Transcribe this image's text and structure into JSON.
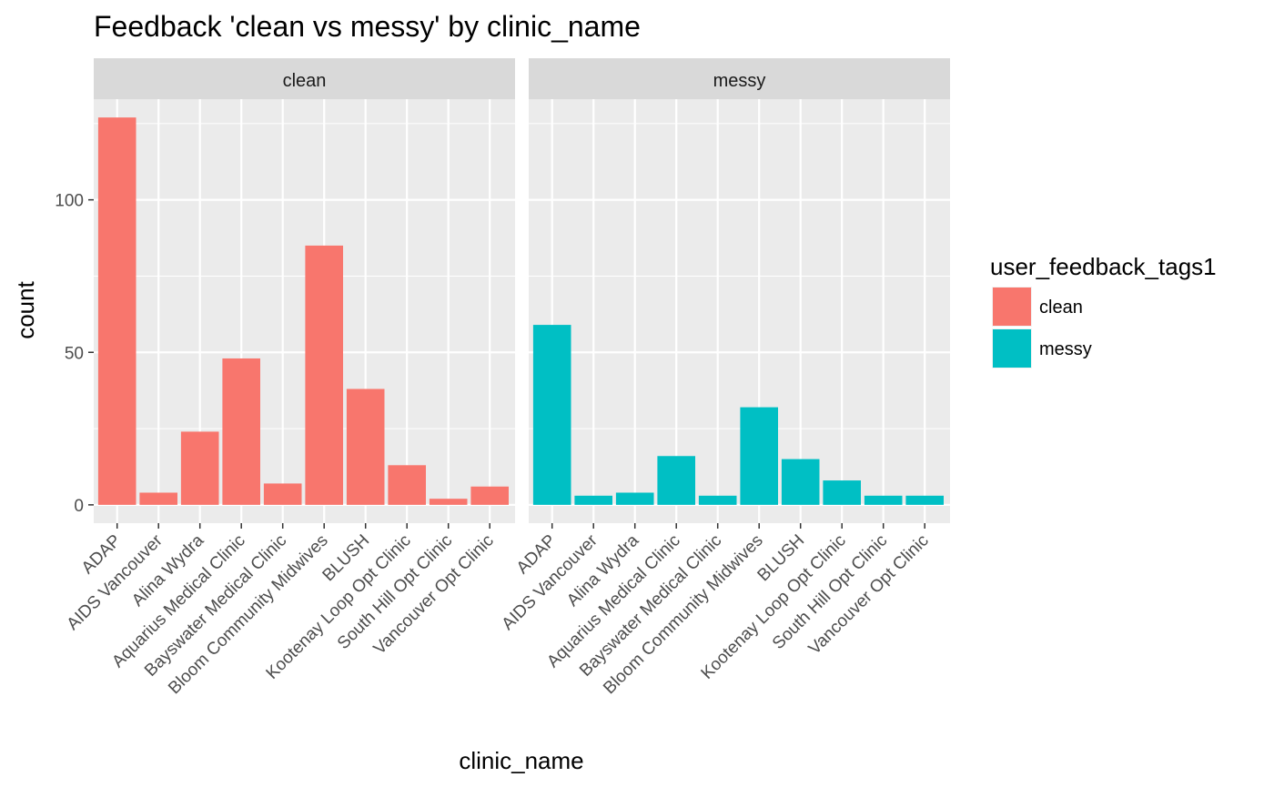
{
  "chart_data": {
    "type": "bar",
    "title": "Feedback 'clean vs messy' by clinic_name",
    "xlabel": "clinic_name",
    "ylabel": "count",
    "categories": [
      "ADAP",
      "AIDS Vancouver",
      "Alina Wydra",
      "Aquarius Medical Clinic",
      "Bayswater Medical Clinic",
      "Bloom Community Midwives",
      "BLUSH",
      "Kootenay Loop Opt Clinic",
      "South Hill Opt Clinic",
      "Vancouver Opt Clinic"
    ],
    "yticks": [
      0,
      50,
      100
    ],
    "ylim": [
      -6,
      133
    ],
    "facets": [
      {
        "label": "clean",
        "series": "clean",
        "values": [
          127,
          4,
          24,
          48,
          7,
          85,
          38,
          13,
          2,
          6
        ]
      },
      {
        "label": "messy",
        "series": "messy",
        "values": [
          59,
          3,
          4,
          16,
          3,
          32,
          15,
          8,
          3,
          3
        ]
      }
    ],
    "legend": {
      "title": "user_feedback_tags1",
      "position": "right",
      "items": [
        {
          "label": "clean",
          "color": "#F8766D"
        },
        {
          "label": "messy",
          "color": "#00BFC4"
        }
      ]
    },
    "grid": true
  }
}
